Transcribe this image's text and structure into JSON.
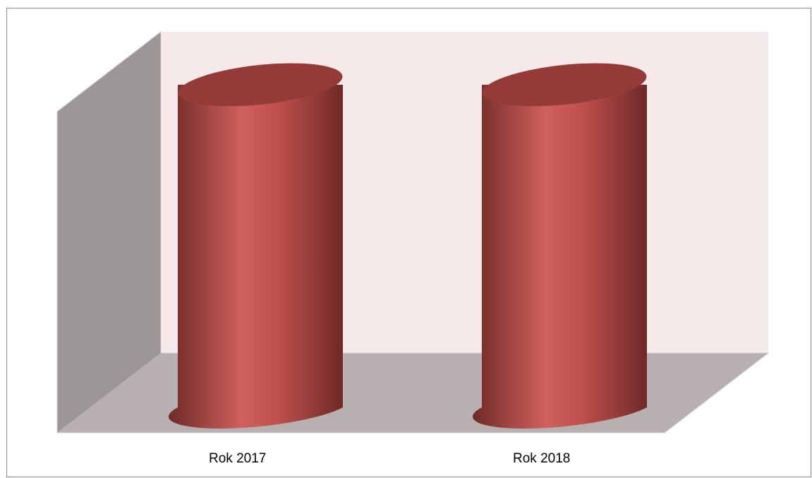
{
  "chart_data": {
    "type": "bar",
    "bar_shape": "cylinder",
    "three_d": true,
    "categories": [
      "Rok 2017",
      "Rok 2018"
    ],
    "series": [
      {
        "values": [
          1.0,
          1.0
        ]
      }
    ],
    "ylim": [
      0,
      1
    ],
    "grid": false,
    "legend": "none",
    "colors": {
      "bar": "#c0504d",
      "bar_highlight": "#d0605c",
      "bar_shadow": "#6e2a28",
      "bar_top": "#943a37",
      "back_wall": "#f5e9e9",
      "side_wall": "#9c9797",
      "floor": "#b8b0b0",
      "outline": "#cfcfcf",
      "frame": "#8c8c8c"
    }
  }
}
